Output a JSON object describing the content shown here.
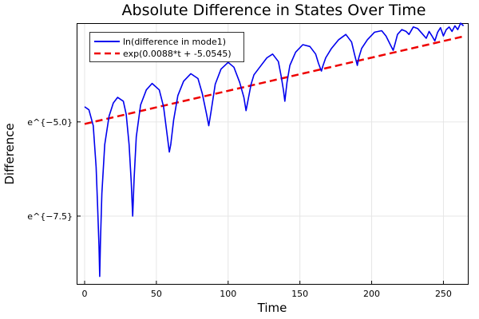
{
  "chart_data": {
    "type": "line",
    "title": "Absolute Difference in States Over Time",
    "xlabel": "Time",
    "ylabel": "Difference",
    "xlim": [
      -5,
      267
    ],
    "ylim": [
      -9.3,
      -2.4
    ],
    "xticks": [
      {
        "value": 0,
        "label": "0"
      },
      {
        "value": 50,
        "label": "50"
      },
      {
        "value": 100,
        "label": "100"
      },
      {
        "value": 150,
        "label": "150"
      },
      {
        "value": 200,
        "label": "200"
      },
      {
        "value": 250,
        "label": "250"
      }
    ],
    "yticks": [
      {
        "value": -5.0,
        "label": "e^{−5.0}"
      },
      {
        "value": -7.5,
        "label": "e^{−7.5}"
      }
    ],
    "grid": true,
    "legend_position": "top-left",
    "series": [
      {
        "name": "ln(difference in mode1)",
        "color": "#0000ee",
        "style": "solid",
        "points": [
          [
            0,
            -4.6
          ],
          [
            3,
            -4.68
          ],
          [
            6,
            -5.1
          ],
          [
            8,
            -6.2
          ],
          [
            9,
            -7.2
          ],
          [
            10,
            -8.3
          ],
          [
            10.5,
            -9.1
          ],
          [
            11,
            -8.2
          ],
          [
            12,
            -6.9
          ],
          [
            14,
            -5.6
          ],
          [
            17,
            -4.85
          ],
          [
            20,
            -4.5
          ],
          [
            23,
            -4.35
          ],
          [
            27,
            -4.45
          ],
          [
            29,
            -4.8
          ],
          [
            31,
            -5.6
          ],
          [
            32.5,
            -6.6
          ],
          [
            33.5,
            -7.5
          ],
          [
            34.5,
            -6.5
          ],
          [
            36,
            -5.4
          ],
          [
            39,
            -4.55
          ],
          [
            43,
            -4.15
          ],
          [
            47,
            -3.98
          ],
          [
            52,
            -4.15
          ],
          [
            55,
            -4.6
          ],
          [
            57,
            -5.2
          ],
          [
            59,
            -5.8
          ],
          [
            60,
            -5.6
          ],
          [
            62,
            -4.95
          ],
          [
            65,
            -4.3
          ],
          [
            69,
            -3.92
          ],
          [
            74,
            -3.72
          ],
          [
            79,
            -3.85
          ],
          [
            82,
            -4.25
          ],
          [
            85,
            -4.8
          ],
          [
            86.5,
            -5.1
          ],
          [
            88,
            -4.75
          ],
          [
            91,
            -4.0
          ],
          [
            95,
            -3.6
          ],
          [
            100,
            -3.42
          ],
          [
            104,
            -3.55
          ],
          [
            108,
            -3.95
          ],
          [
            111,
            -4.35
          ],
          [
            112.5,
            -4.7
          ],
          [
            114,
            -4.4
          ],
          [
            116,
            -4.0
          ],
          [
            118,
            -3.75
          ],
          [
            122,
            -3.55
          ],
          [
            127,
            -3.3
          ],
          [
            131,
            -3.2
          ],
          [
            135,
            -3.4
          ],
          [
            137,
            -3.8
          ],
          [
            138.5,
            -4.15
          ],
          [
            139.5,
            -4.45
          ],
          [
            141,
            -3.95
          ],
          [
            143,
            -3.5
          ],
          [
            147,
            -3.15
          ],
          [
            152,
            -2.95
          ],
          [
            157,
            -3.0
          ],
          [
            161,
            -3.2
          ],
          [
            163,
            -3.45
          ],
          [
            165,
            -3.65
          ],
          [
            166,
            -3.52
          ],
          [
            168,
            -3.3
          ],
          [
            172,
            -3.05
          ],
          [
            177,
            -2.82
          ],
          [
            182,
            -2.68
          ],
          [
            186,
            -2.88
          ],
          [
            188,
            -3.2
          ],
          [
            190,
            -3.5
          ],
          [
            191,
            -3.3
          ],
          [
            193,
            -3.05
          ],
          [
            197,
            -2.82
          ],
          [
            202,
            -2.62
          ],
          [
            207,
            -2.58
          ],
          [
            210,
            -2.72
          ],
          [
            213,
            -2.95
          ],
          [
            215,
            -3.1
          ],
          [
            216.5,
            -2.9
          ],
          [
            218,
            -2.68
          ],
          [
            221,
            -2.55
          ],
          [
            224,
            -2.6
          ],
          [
            226,
            -2.68
          ],
          [
            229,
            -2.48
          ],
          [
            232,
            -2.52
          ],
          [
            235,
            -2.65
          ],
          [
            238,
            -2.78
          ],
          [
            240,
            -2.6
          ],
          [
            242,
            -2.72
          ],
          [
            244,
            -2.85
          ],
          [
            246,
            -2.62
          ],
          [
            248,
            -2.5
          ],
          [
            250,
            -2.72
          ],
          [
            252,
            -2.55
          ],
          [
            254,
            -2.48
          ],
          [
            256,
            -2.6
          ],
          [
            258,
            -2.45
          ],
          [
            260,
            -2.55
          ],
          [
            262,
            -2.38
          ],
          [
            264,
            -2.45
          ]
        ]
      },
      {
        "name": "exp(0.0088*t + -5.0545)",
        "color": "#ee0000",
        "style": "dashed",
        "slope": 0.0088,
        "intercept": -5.0545,
        "x_range": [
          0,
          264
        ]
      }
    ]
  }
}
